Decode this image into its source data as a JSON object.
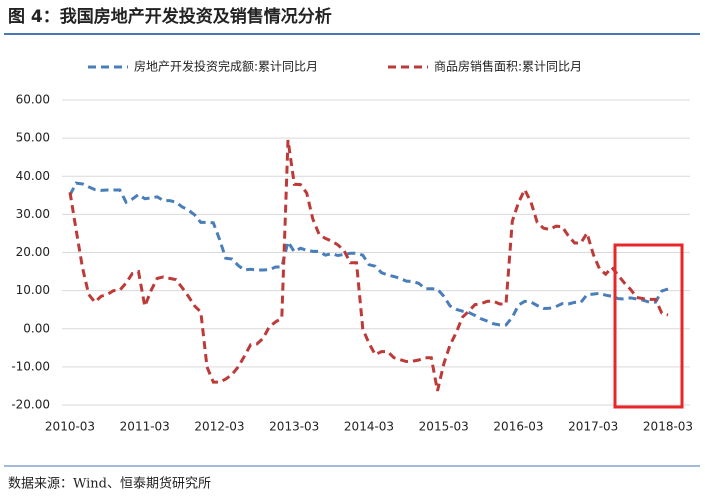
{
  "chart_data": {
    "type": "line",
    "title": "图 4：我国房地产开发投资及销售情况分析",
    "source": "数据来源：Wind、恒泰期货研究所",
    "categories": [
      "2010-03",
      null,
      null,
      null,
      null,
      null,
      null,
      null,
      null,
      null,
      null,
      null,
      "2011-03",
      null,
      null,
      null,
      null,
      null,
      null,
      null,
      null,
      null,
      null,
      null,
      "2012-03",
      null,
      null,
      null,
      null,
      null,
      null,
      null,
      null,
      null,
      null,
      null,
      "2013-03",
      null,
      null,
      null,
      null,
      null,
      null,
      null,
      null,
      null,
      null,
      null,
      "2014-03",
      null,
      null,
      null,
      null,
      null,
      null,
      null,
      null,
      null,
      null,
      null,
      "2015-03",
      null,
      null,
      null,
      null,
      null,
      null,
      null,
      null,
      null,
      null,
      null,
      "2016-03",
      null,
      null,
      null,
      null,
      null,
      null,
      null,
      null,
      null,
      null,
      null,
      "2017-03",
      null,
      null,
      null,
      null,
      null,
      null,
      null,
      null,
      null,
      null,
      null,
      "2018-03"
    ],
    "series": [
      {
        "name": "房地产开发投资完成额:累计同比月",
        "color": "#4a7ebb",
        "values": [
          35.1,
          38.2,
          38.0,
          37.2,
          36.5,
          36.3,
          36.4,
          36.4,
          36.4,
          33.2,
          34.0,
          35.2,
          34.1,
          34.3,
          34.6,
          33.6,
          33.6,
          33.2,
          32.0,
          31.1,
          29.9,
          27.9,
          27.9,
          27.8,
          23.5,
          18.5,
          18.3,
          16.6,
          15.4,
          15.6,
          15.4,
          15.4,
          15.5,
          16.2,
          16.2,
          22.8,
          20.2,
          21.1,
          20.6,
          20.3,
          20.3,
          19.3,
          19.7,
          19.2,
          19.5,
          19.8,
          19.8,
          19.3,
          16.8,
          16.4,
          14.7,
          14.1,
          13.7,
          13.2,
          12.5,
          12.4,
          11.9,
          10.5,
          10.5,
          10.4,
          8.5,
          6.0,
          5.1,
          4.6,
          4.3,
          3.5,
          2.6,
          2.0,
          1.3,
          1.0,
          1.0,
          3.0,
          6.2,
          7.2,
          7.0,
          6.1,
          5.3,
          5.4,
          5.8,
          6.6,
          6.5,
          6.9,
          6.9,
          8.9,
          9.1,
          9.3,
          8.8,
          8.5,
          7.9,
          7.8,
          8.1,
          7.8,
          7.5,
          7.0,
          7.0,
          9.9,
          10.4
        ]
      },
      {
        "name": "商品房销售面积:累计同比月",
        "color": "#be3a38",
        "values": [
          35.8,
          25.8,
          16.0,
          9.0,
          7.0,
          8.5,
          9.0,
          10.0,
          10.1,
          12.0,
          14.5,
          15.0,
          5.9,
          10.0,
          13.2,
          13.6,
          13.2,
          12.9,
          10.8,
          8.5,
          6.0,
          4.4,
          -10.0,
          -14.0,
          -14.0,
          -13.2,
          -12.0,
          -10.0,
          -7.2,
          -4.2,
          -4.0,
          -2.5,
          0.5,
          1.8,
          2.8,
          49.5,
          37.9,
          37.8,
          35.6,
          28.7,
          24.7,
          23.7,
          23.0,
          22.0,
          20.5,
          17.3,
          17.3,
          -0.1,
          -3.8,
          -6.8,
          -6.0,
          -6.0,
          -7.6,
          -8.1,
          -8.6,
          -8.5,
          -8.2,
          -7.6,
          -7.6,
          -16.3,
          -9.2,
          -4.3,
          -1.0,
          3.0,
          4.6,
          6.3,
          6.6,
          7.2,
          7.2,
          6.5,
          6.5,
          28.2,
          33.1,
          36.5,
          33.2,
          27.9,
          26.4,
          26.0,
          26.9,
          26.8,
          24.4,
          22.5,
          22.5,
          25.1,
          19.5,
          15.7,
          14.3,
          16.1,
          14.0,
          12.0,
          10.3,
          8.2,
          7.9,
          7.7,
          7.7,
          4.1,
          3.6
        ]
      }
    ],
    "ylim": [
      -20,
      60
    ],
    "yticks": [
      {
        "value": -20,
        "label": "-20.00"
      },
      {
        "value": -10,
        "label": "-10.00"
      },
      {
        "value": 0,
        "label": "0.00"
      },
      {
        "value": 10,
        "label": "10.00"
      },
      {
        "value": 20,
        "label": "20.00"
      },
      {
        "value": 30,
        "label": "30.00"
      },
      {
        "value": 40,
        "label": "40.00"
      },
      {
        "value": 50,
        "label": "50.00"
      },
      {
        "value": 60,
        "label": "60.00"
      }
    ],
    "grid": true,
    "legend": "top"
  }
}
